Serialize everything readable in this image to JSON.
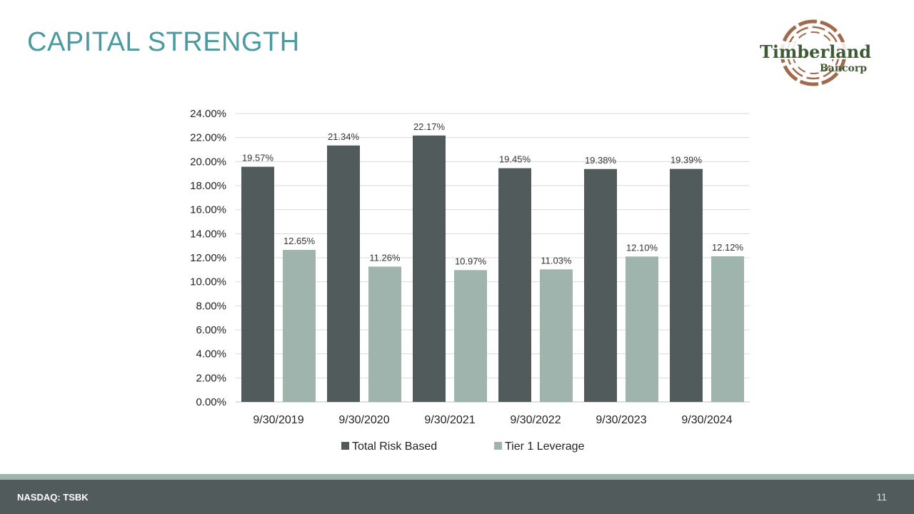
{
  "slide": {
    "title": "CAPITAL STRENGTH",
    "logo_name": "Timberland",
    "logo_sub": "Bancorp",
    "ticker": "NASDAQ: TSBK",
    "page_number": "11"
  },
  "colors": {
    "title": "#4a9aa0",
    "total_risk_based": "#525b5c",
    "tier1_leverage": "#9eb4ad",
    "logo_green": "#3e5a35",
    "logo_ring": "#a06a4c",
    "footer_bar": "#525b5c"
  },
  "chart_data": {
    "type": "bar",
    "title": "",
    "xlabel": "",
    "ylabel": "",
    "categories": [
      "9/30/2019",
      "9/30/2020",
      "9/30/2021",
      "9/30/2022",
      "9/30/2023",
      "9/30/2024"
    ],
    "series": [
      {
        "name": "Total Risk Based",
        "values": [
          19.57,
          21.34,
          22.17,
          19.45,
          19.38,
          19.39
        ],
        "labels": [
          "19.57%",
          "21.34%",
          "22.17%",
          "19.45%",
          "19.38%",
          "19.39%"
        ]
      },
      {
        "name": "Tier 1 Leverage",
        "values": [
          12.65,
          11.26,
          10.97,
          11.03,
          12.1,
          12.12
        ],
        "labels": [
          "12.65%",
          "11.26%",
          "10.97%",
          "11.03%",
          "12.10%",
          "12.12%"
        ]
      }
    ],
    "ylim": [
      0,
      24
    ],
    "yticks": [
      "0.00%",
      "2.00%",
      "4.00%",
      "6.00%",
      "8.00%",
      "10.00%",
      "12.00%",
      "14.00%",
      "16.00%",
      "18.00%",
      "20.00%",
      "22.00%",
      "24.00%"
    ],
    "grid": true,
    "legend": "bottom"
  }
}
